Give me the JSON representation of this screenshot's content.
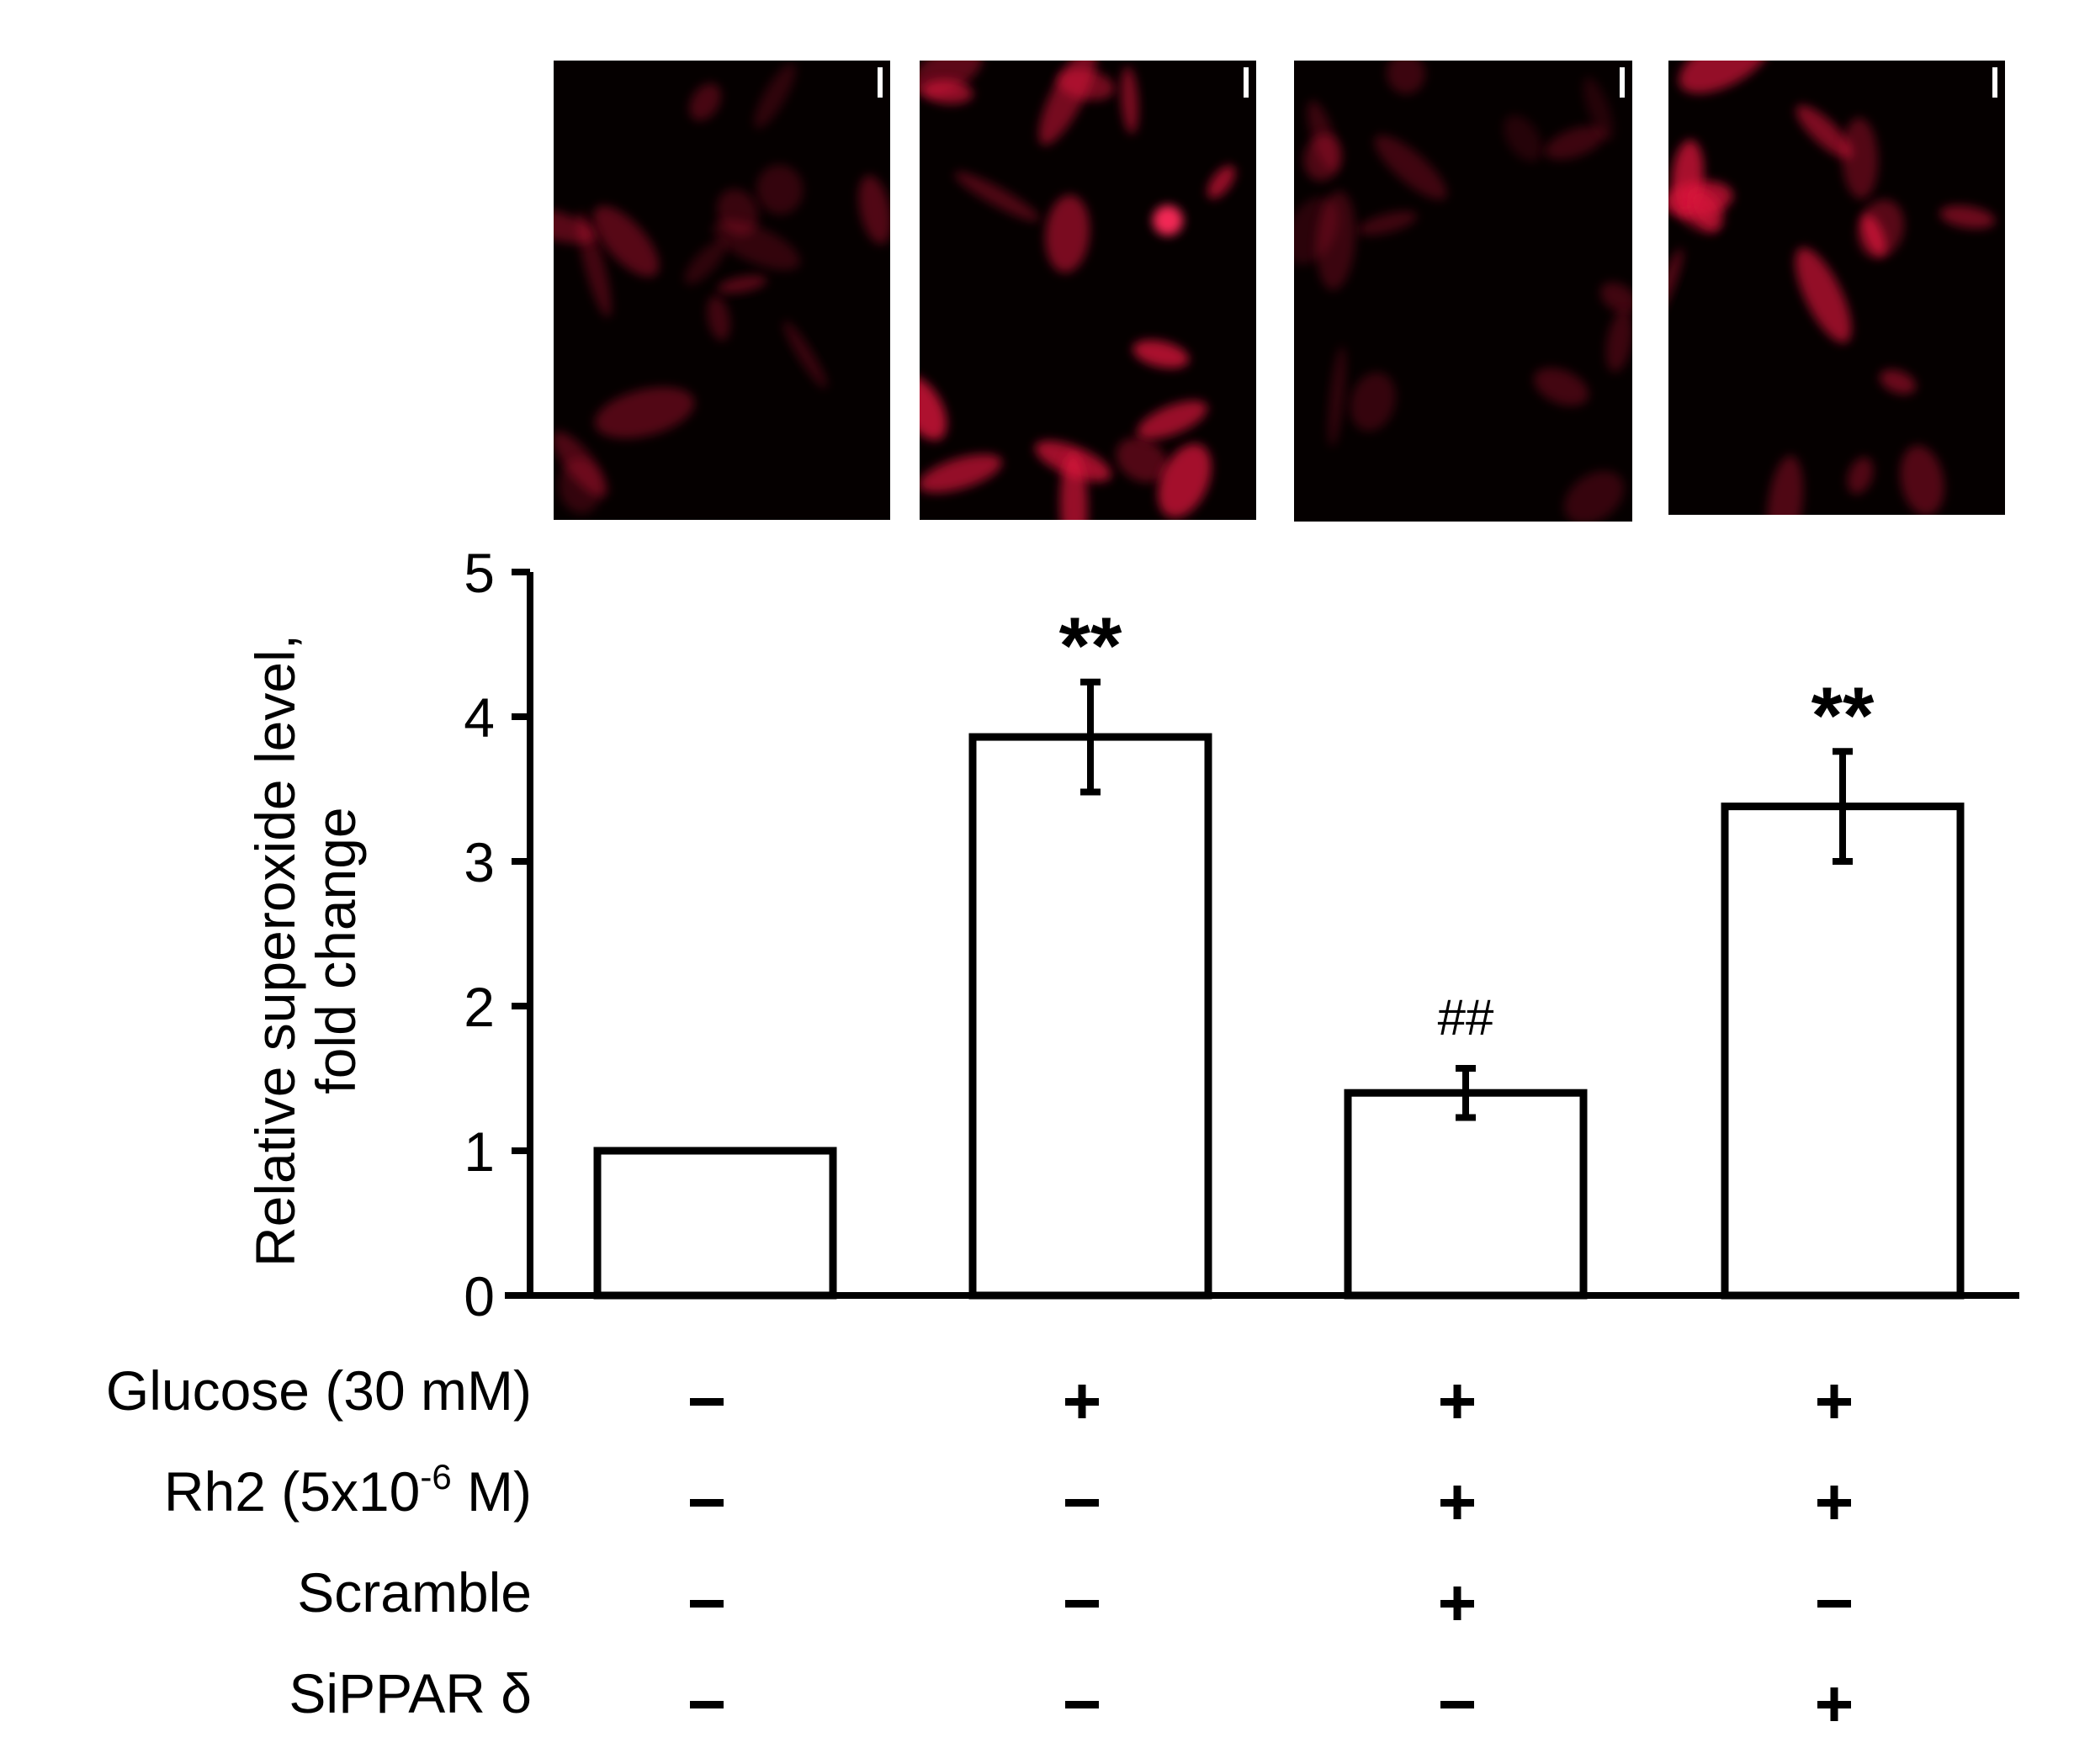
{
  "chart_data": {
    "type": "bar",
    "ylabel": "Relative superoxide level,",
    "ylabel_line2": "fold change",
    "ylim": [
      0,
      5
    ],
    "yticks": [
      "0",
      "1",
      "2",
      "3",
      "4",
      "5"
    ],
    "bars": [
      {
        "value": 1.0,
        "error": 0.0,
        "annotation": ""
      },
      {
        "value": 3.86,
        "error": 0.38,
        "annotation": "**"
      },
      {
        "value": 1.4,
        "error": 0.17,
        "annotation": "##"
      },
      {
        "value": 3.38,
        "error": 0.38,
        "annotation": "**"
      }
    ],
    "bar_fill": "#ffffff",
    "bar_stroke": "#000000",
    "condition_rows": [
      {
        "label": "Glucose (30 mM)",
        "values": [
          "-",
          "+",
          "+",
          "+"
        ]
      },
      {
        "label_prefix": "Rh2 (5x10",
        "label_sup": "-6",
        "label_suffix": " M)",
        "values": [
          "-",
          "-",
          "+",
          "+"
        ]
      },
      {
        "label": "Scramble",
        "values": [
          "-",
          "-",
          "+",
          "-"
        ]
      },
      {
        "label": "SiPPAR δ",
        "values": [
          "-",
          "-",
          "-",
          "+"
        ]
      }
    ]
  },
  "micrographs": {
    "count": 4,
    "background": "#050000",
    "stain_color": "#e0143c",
    "relative_intensity": [
      0.45,
      0.95,
      0.4,
      0.9
    ]
  }
}
